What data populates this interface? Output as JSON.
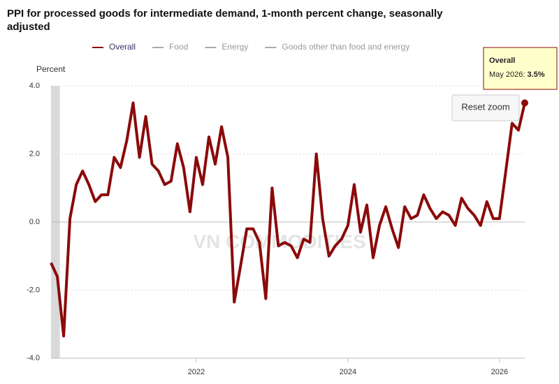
{
  "chart_data": {
    "type": "line",
    "title": "PPI for processed goods for intermediate demand, 1-month percent change, seasonally adjusted",
    "title_lines": [
      "PPI for processed goods for intermediate demand, 1-month percent change, seasonally",
      "adjusted"
    ],
    "y_label": "Percent",
    "watermark": "VN COMMODITIES",
    "button": "Reset zoom",
    "x": [
      "2020-02",
      "2020-03",
      "2020-04",
      "2020-05",
      "2020-06",
      "2020-07",
      "2020-08",
      "2020-09",
      "2020-10",
      "2020-11",
      "2020-12",
      "2021-01",
      "2021-02",
      "2021-03",
      "2021-04",
      "2021-05",
      "2021-06",
      "2021-07",
      "2021-08",
      "2021-09",
      "2021-10",
      "2021-11",
      "2021-12",
      "2022-01",
      "2022-02",
      "2022-03",
      "2022-04",
      "2022-05",
      "2022-06",
      "2022-07",
      "2022-08",
      "2022-09",
      "2022-10",
      "2022-11",
      "2022-12",
      "2023-01",
      "2023-02",
      "2023-03",
      "2023-04",
      "2023-05",
      "2023-06",
      "2023-07",
      "2023-08",
      "2023-09",
      "2023-10",
      "2023-11",
      "2023-12",
      "2024-01",
      "2024-02",
      "2024-03",
      "2024-04",
      "2024-05",
      "2024-06",
      "2024-07",
      "2024-08",
      "2024-09",
      "2024-10",
      "2024-11",
      "2024-12",
      "2025-01",
      "2025-02",
      "2025-03",
      "2025-04",
      "2025-05",
      "2025-06",
      "2025-07",
      "2025-08",
      "2025-09",
      "2025-10",
      "2025-11",
      "2025-12",
      "2026-01",
      "2026-02",
      "2026-03",
      "2026-04",
      "2026-05"
    ],
    "series": [
      {
        "name": "Overall",
        "color": "#8b0a0a",
        "visible": true,
        "values": [
          -1.2,
          -1.6,
          -3.35,
          0.1,
          1.1,
          1.5,
          1.1,
          0.6,
          0.8,
          0.8,
          1.9,
          1.6,
          2.4,
          3.5,
          1.9,
          3.1,
          1.7,
          1.5,
          1.1,
          1.2,
          2.3,
          1.6,
          0.3,
          1.9,
          1.1,
          2.5,
          1.7,
          2.8,
          1.9,
          -2.35,
          -1.3,
          -0.2,
          -0.2,
          -0.6,
          -2.25,
          1.0,
          -0.7,
          -0.6,
          -0.7,
          -1.05,
          -0.5,
          -0.6,
          2.0,
          0.1,
          -1.0,
          -0.7,
          -0.5,
          -0.1,
          1.1,
          -0.3,
          0.5,
          -1.05,
          -0.1,
          0.45,
          -0.2,
          -0.75,
          0.45,
          0.1,
          0.2,
          0.8,
          0.4,
          0.1,
          0.3,
          0.2,
          -0.1,
          0.7,
          0.4,
          0.2,
          -0.1,
          0.6,
          0.1,
          0.1,
          1.5,
          2.9,
          2.7,
          3.5
        ]
      },
      {
        "name": "Food",
        "color": "#999999",
        "visible": false
      },
      {
        "name": "Energy",
        "color": "#999999",
        "visible": false
      },
      {
        "name": "Goods other than food and energy",
        "color": "#999999",
        "visible": false
      }
    ],
    "xlim": [
      "2020-02",
      "2026-05"
    ],
    "xticks": [
      {
        "value": "2022-01",
        "label": "2022"
      },
      {
        "value": "2024-01",
        "label": "2024"
      },
      {
        "value": "2026-01",
        "label": "2026"
      }
    ],
    "ylim": [
      -4,
      4
    ],
    "yticks": [
      {
        "value": 4,
        "label": "4.0"
      },
      {
        "value": 2,
        "label": "2.0"
      },
      {
        "value": 0,
        "label": "0.0"
      },
      {
        "value": -2,
        "label": "-2.0"
      },
      {
        "value": -4,
        "label": "-4.0"
      }
    ],
    "grid": true,
    "plot_bands": [
      {
        "from": "2020-02",
        "to": "2020-03"
      }
    ],
    "tooltip": {
      "label": "May 2026",
      "value_label": "3.5%"
    }
  }
}
